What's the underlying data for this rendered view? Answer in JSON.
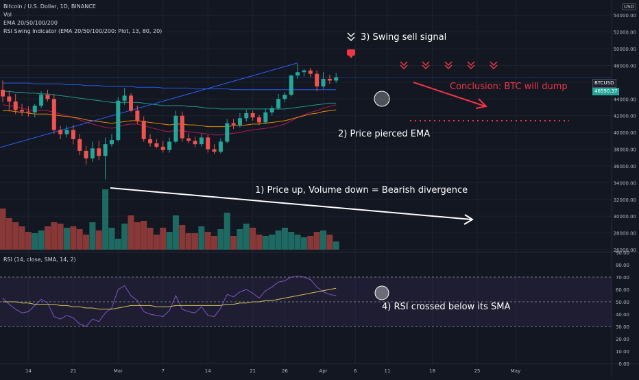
{
  "header": {
    "symbol_line": "Bitcoin / U.S. Dollar, 1D, BINANCE",
    "vol_label": "Vol",
    "ema_label": "EMA 20/50/100/200",
    "rsi_swing_label": "RSI Swing Indicator (EMA 20/50/100/200: Plot, 13, 80, 20)",
    "rsi_pane_label": "RSI (14, close, SMA, 14, 2)",
    "currency": "USD"
  },
  "price_tag": {
    "symbol": "BTCUSD",
    "value": "46590.37"
  },
  "annotations": {
    "sell_signal": "3) Swing sell signal",
    "conclusion": "Conclusion: BTC will dump",
    "ema_pierce": "2) Price pierced EMA",
    "divergence": "1) Price up, Volume down = Bearish divergence",
    "rsi_cross": "4) RSI crossed below its SMA"
  },
  "colors": {
    "background": "#131722",
    "up": "#26a69a",
    "down": "#ef5350",
    "annotation_red": "#f23645",
    "rsi_line": "#7e57c2",
    "rsi_sma": "#d4c25e"
  },
  "x_axis": {
    "labels": [
      {
        "text": "14",
        "bar": 4
      },
      {
        "text": "21",
        "bar": 11
      },
      {
        "text": "Mar",
        "bar": 18
      },
      {
        "text": "7",
        "bar": 25
      },
      {
        "text": "14",
        "bar": 32
      },
      {
        "text": "21",
        "bar": 39
      },
      {
        "text": "26",
        "bar": 44
      },
      {
        "text": "Apr",
        "bar": 50
      },
      {
        "text": "6",
        "bar": 55
      },
      {
        "text": "11",
        "bar": 60
      },
      {
        "text": "18",
        "bar": 67
      },
      {
        "text": "25",
        "bar": 74
      },
      {
        "text": "May",
        "bar": 80
      }
    ]
  },
  "price_axis": {
    "ticks": [
      "54000.00",
      "52000.00",
      "50000.00",
      "48000.00",
      "44000.00",
      "42000.00",
      "40000.00",
      "38000.00",
      "36000.00",
      "34000.00",
      "32000.00",
      "30000.00",
      "28000.00",
      "26000.00"
    ]
  },
  "rsi_axis": {
    "ticks": [
      "90.00",
      "80.00",
      "70.00",
      "60.00",
      "50.00",
      "40.00",
      "30.00",
      "20.00",
      "10.00",
      "0.00"
    ]
  },
  "chart_data": [
    {
      "type": "candlestick",
      "title": "Bitcoin / U.S. Dollar, 1D, BINANCE",
      "ylim": [
        26000,
        55000
      ],
      "bars": [
        {
          "o": 45100,
          "h": 46200,
          "l": 43600,
          "c": 44300
        },
        {
          "o": 44300,
          "h": 45000,
          "l": 42500,
          "c": 43700
        },
        {
          "o": 43700,
          "h": 44600,
          "l": 42200,
          "c": 42700
        },
        {
          "o": 42700,
          "h": 43400,
          "l": 42000,
          "c": 42500
        },
        {
          "o": 42500,
          "h": 43100,
          "l": 41900,
          "c": 42400
        },
        {
          "o": 42400,
          "h": 43400,
          "l": 41800,
          "c": 43200
        },
        {
          "o": 43200,
          "h": 44900,
          "l": 42900,
          "c": 44500
        },
        {
          "o": 44500,
          "h": 45100,
          "l": 43700,
          "c": 44000
        },
        {
          "o": 44000,
          "h": 44600,
          "l": 39800,
          "c": 40300
        },
        {
          "o": 40300,
          "h": 40800,
          "l": 39200,
          "c": 39800
        },
        {
          "o": 39800,
          "h": 40800,
          "l": 39400,
          "c": 40300
        },
        {
          "o": 40300,
          "h": 40900,
          "l": 38600,
          "c": 39200
        },
        {
          "o": 39200,
          "h": 39800,
          "l": 37300,
          "c": 37800
        },
        {
          "o": 37800,
          "h": 38400,
          "l": 36200,
          "c": 36900
        },
        {
          "o": 36900,
          "h": 38900,
          "l": 36500,
          "c": 38100
        },
        {
          "o": 38100,
          "h": 39000,
          "l": 36700,
          "c": 37200
        },
        {
          "o": 37200,
          "h": 39400,
          "l": 34400,
          "c": 38600
        },
        {
          "o": 38600,
          "h": 39800,
          "l": 38300,
          "c": 39100
        },
        {
          "o": 39100,
          "h": 44200,
          "l": 38900,
          "c": 43800
        },
        {
          "o": 43800,
          "h": 45300,
          "l": 43300,
          "c": 44400
        },
        {
          "o": 44400,
          "h": 44700,
          "l": 42400,
          "c": 42600
        },
        {
          "o": 42600,
          "h": 43200,
          "l": 41000,
          "c": 41400
        },
        {
          "o": 41400,
          "h": 41900,
          "l": 38900,
          "c": 39200
        },
        {
          "o": 39200,
          "h": 39800,
          "l": 38300,
          "c": 38700
        },
        {
          "o": 38700,
          "h": 39200,
          "l": 38100,
          "c": 38300
        },
        {
          "o": 38300,
          "h": 39000,
          "l": 37600,
          "c": 37900
        },
        {
          "o": 37900,
          "h": 39400,
          "l": 37600,
          "c": 38900
        },
        {
          "o": 38900,
          "h": 42600,
          "l": 38700,
          "c": 42000
        },
        {
          "o": 42000,
          "h": 42500,
          "l": 38900,
          "c": 39300
        },
        {
          "o": 39300,
          "h": 39900,
          "l": 38700,
          "c": 39000
        },
        {
          "o": 39000,
          "h": 39500,
          "l": 38200,
          "c": 38600
        },
        {
          "o": 38600,
          "h": 39800,
          "l": 38300,
          "c": 39400
        },
        {
          "o": 39400,
          "h": 39700,
          "l": 37600,
          "c": 38000
        },
        {
          "o": 38000,
          "h": 38600,
          "l": 37400,
          "c": 37700
        },
        {
          "o": 37700,
          "h": 39300,
          "l": 37500,
          "c": 38900
        },
        {
          "o": 38900,
          "h": 41600,
          "l": 38700,
          "c": 41100
        },
        {
          "o": 41100,
          "h": 41600,
          "l": 40400,
          "c": 40900
        },
        {
          "o": 40900,
          "h": 42300,
          "l": 40600,
          "c": 41700
        },
        {
          "o": 41700,
          "h": 42700,
          "l": 41300,
          "c": 42300
        },
        {
          "o": 42300,
          "h": 42600,
          "l": 41400,
          "c": 41800
        },
        {
          "o": 41800,
          "h": 42100,
          "l": 40900,
          "c": 41200
        },
        {
          "o": 41200,
          "h": 42900,
          "l": 41000,
          "c": 42400
        },
        {
          "o": 42400,
          "h": 43200,
          "l": 42000,
          "c": 42900
        },
        {
          "o": 42900,
          "h": 44600,
          "l": 42700,
          "c": 44000
        },
        {
          "o": 44000,
          "h": 44800,
          "l": 43600,
          "c": 44500
        },
        {
          "o": 44500,
          "h": 46900,
          "l": 44300,
          "c": 46800
        },
        {
          "o": 46800,
          "h": 48200,
          "l": 46400,
          "c": 47200
        },
        {
          "o": 47200,
          "h": 47600,
          "l": 46700,
          "c": 47400
        },
        {
          "o": 47400,
          "h": 47700,
          "l": 46600,
          "c": 47000
        },
        {
          "o": 47000,
          "h": 47400,
          "l": 44900,
          "c": 45500
        },
        {
          "o": 45500,
          "h": 47200,
          "l": 45200,
          "c": 46400
        },
        {
          "o": 46400,
          "h": 46900,
          "l": 45800,
          "c": 46200
        },
        {
          "o": 46200,
          "h": 47100,
          "l": 45900,
          "c": 46590
        }
      ],
      "volume": [
        30,
        23,
        20,
        17,
        13,
        12,
        14,
        17,
        20,
        19,
        16,
        17,
        15,
        11,
        20,
        14,
        44,
        16,
        8,
        19,
        25,
        20,
        21,
        16,
        11,
        16,
        13,
        25,
        18,
        12,
        12,
        17,
        13,
        10,
        15,
        27,
        10,
        15,
        19,
        16,
        11,
        10,
        11,
        14,
        16,
        13,
        11,
        9,
        10,
        13,
        14,
        11,
        6
      ],
      "ema": [
        {
          "name": "EMA 20",
          "values": [
            43300,
            43200,
            43100,
            42900,
            42700,
            42600,
            42600,
            42600,
            42400,
            42200,
            42000,
            41800,
            41500,
            41200,
            41000,
            40800,
            40600,
            40500,
            40700,
            40900,
            41000,
            41000,
            40800,
            40600,
            40400,
            40200,
            40100,
            40300,
            40200,
            40100,
            40000,
            39900,
            39800,
            39700,
            39700,
            39800,
            39900,
            40000,
            40200,
            40300,
            40400,
            40500,
            40600,
            40800,
            41000,
            41400,
            41800,
            42100,
            42400,
            42600,
            42900,
            43100,
            43300
          ]
        },
        {
          "name": "EMA 50",
          "values": [
            42600,
            42600,
            42500,
            42400,
            42300,
            42200,
            42200,
            42200,
            42100,
            42000,
            41900,
            41800,
            41700,
            41500,
            41400,
            41300,
            41200,
            41100,
            41200,
            41300,
            41400,
            41400,
            41300,
            41200,
            41100,
            41000,
            40900,
            41000,
            41000,
            40900,
            40900,
            40800,
            40700,
            40700,
            40700,
            40700,
            40800,
            40800,
            40900,
            41000,
            41000,
            41100,
            41200,
            41300,
            41400,
            41600,
            41800,
            42000,
            42200,
            42300,
            42500,
            42600,
            42700
          ]
        },
        {
          "name": "EMA 100",
          "values": [
            44900,
            44900,
            44800,
            44800,
            44700,
            44700,
            44600,
            44600,
            44500,
            44400,
            44300,
            44200,
            44100,
            44000,
            43900,
            43800,
            43700,
            43600,
            43600,
            43600,
            43600,
            43600,
            43500,
            43400,
            43300,
            43200,
            43200,
            43200,
            43200,
            43100,
            43100,
            43000,
            42900,
            42900,
            42800,
            42800,
            42800,
            42800,
            42800,
            42800,
            42800,
            42800,
            42800,
            42800,
            42800,
            42900,
            43000,
            43100,
            43200,
            43300,
            43400,
            43500,
            43500
          ]
        },
        {
          "name": "EMA 200",
          "values": [
            45900,
            45900,
            45900,
            45900,
            45900,
            45800,
            45800,
            45800,
            45800,
            45800,
            45700,
            45700,
            45700,
            45600,
            45600,
            45600,
            45500,
            45500,
            45500,
            45500,
            45500,
            45400,
            45400,
            45400,
            45400,
            45300,
            45300,
            45300,
            45300,
            45300,
            45200,
            45200,
            45200,
            45200,
            45200,
            45200,
            45100,
            45100,
            45100,
            45100,
            45100,
            45100,
            45100,
            45100,
            45100,
            45100,
            45100,
            45100,
            45100,
            45100,
            45100,
            45100,
            45100
          ]
        }
      ],
      "rsi": [
        53,
        48,
        44,
        41,
        42,
        47,
        52,
        49,
        38,
        36,
        39,
        37,
        32,
        30,
        36,
        34,
        41,
        45,
        60,
        63,
        55,
        51,
        42,
        40,
        39,
        38,
        43,
        55,
        44,
        42,
        41,
        46,
        39,
        38,
        45,
        56,
        54,
        58,
        60,
        57,
        53,
        59,
        62,
        66,
        67,
        70,
        71,
        70,
        68,
        62,
        58,
        56,
        55
      ],
      "rsi_sma": [
        50,
        50,
        50,
        49,
        49,
        48,
        48,
        48,
        48,
        47,
        47,
        46,
        46,
        45,
        45,
        44,
        44,
        44,
        45,
        46,
        47,
        47,
        47,
        47,
        46,
        46,
        46,
        47,
        47,
        47,
        47,
        47,
        47,
        47,
        47,
        48,
        48,
        49,
        49,
        50,
        50,
        51,
        51,
        52,
        53,
        54,
        55,
        56,
        57,
        58,
        59,
        60,
        61
      ],
      "rsi_ylim": [
        0,
        90
      ],
      "rsi_bands": [
        70,
        50,
        30
      ]
    }
  ]
}
